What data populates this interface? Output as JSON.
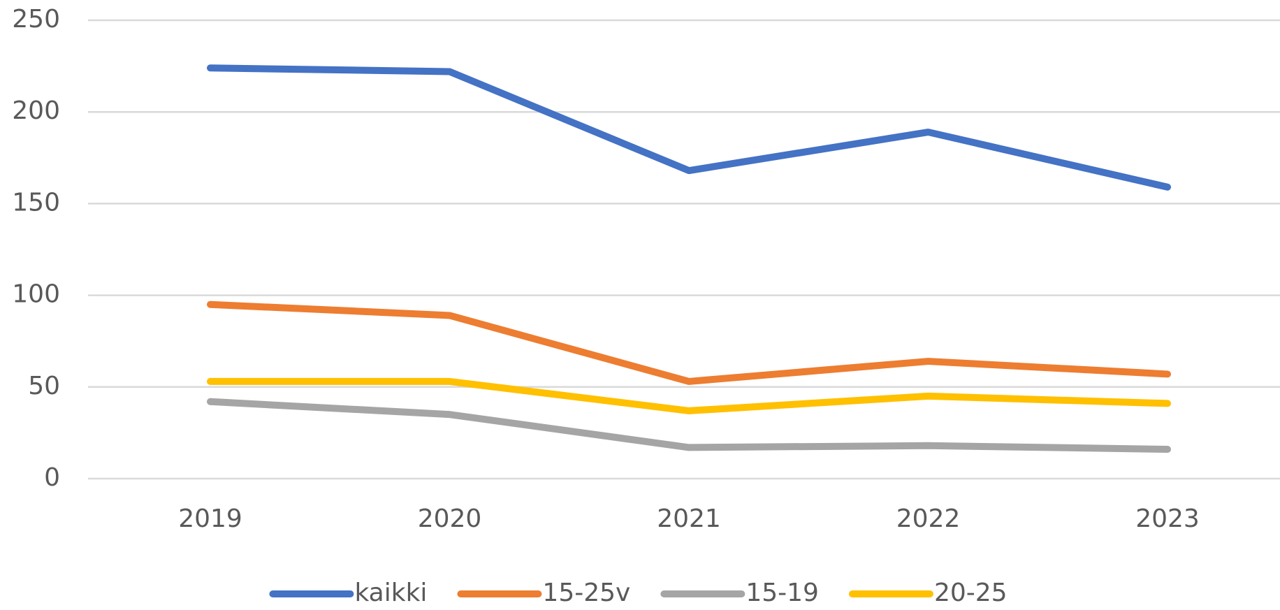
{
  "chart_data": {
    "type": "line",
    "categories": [
      "2019",
      "2020",
      "2021",
      "2022",
      "2023"
    ],
    "series": [
      {
        "name": "kaikki",
        "color": "#4472c4",
        "values": [
          224,
          222,
          168,
          189,
          159
        ]
      },
      {
        "name": "15-25v",
        "color": "#ed7d31",
        "values": [
          95,
          89,
          53,
          64,
          57
        ]
      },
      {
        "name": "15-19",
        "color": "#a5a5a5",
        "values": [
          42,
          35,
          17,
          18,
          16
        ]
      },
      {
        "name": "20-25",
        "color": "#ffc000",
        "values": [
          53,
          53,
          37,
          45,
          41
        ]
      }
    ],
    "ylim": [
      0,
      250
    ],
    "yticks": [
      0,
      50,
      100,
      150,
      200,
      250
    ],
    "grid": true,
    "legend": "bottom"
  }
}
